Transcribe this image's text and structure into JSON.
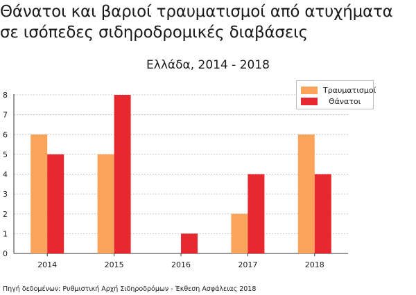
{
  "title_line1": "Θάνατοι και βαριοί τραυματισμοί από ατυχήματα",
  "title_line2": "σε ισόπεδες σιδηροδρομικές διαβάσεις",
  "subtitle": "Ελλάδα, 2014 - 2018",
  "source": "Πηγή δεδομένων:  Ρυθμιστική Αρχή Σιδηροδρόμων - Έκθεση Ασφάλειας 2018",
  "colors": {
    "injuries": "#f9a35b",
    "deaths": "#e8282f",
    "grid": "#c8c8c8",
    "axis": "#333333"
  },
  "chart_data": {
    "type": "bar",
    "title": "Θάνατοι και βαριοί τραυματισμοί από ατυχήματα σε ισόπεδες σιδηροδρομικές διαβάσεις",
    "subtitle": "Ελλάδα, 2014 - 2018",
    "categories": [
      "2014",
      "2015",
      "2016",
      "2017",
      "2018"
    ],
    "series": [
      {
        "name": "Τραυματισμοί",
        "values": [
          6,
          5,
          0,
          2,
          6
        ]
      },
      {
        "name": "Θάνατοι",
        "values": [
          5,
          8,
          1,
          4,
          4
        ]
      }
    ],
    "ylim": [
      0,
      8
    ],
    "yticks": [
      0,
      1,
      2,
      3,
      4,
      5,
      6,
      7,
      8
    ],
    "grid": true,
    "legend": "top-right"
  }
}
